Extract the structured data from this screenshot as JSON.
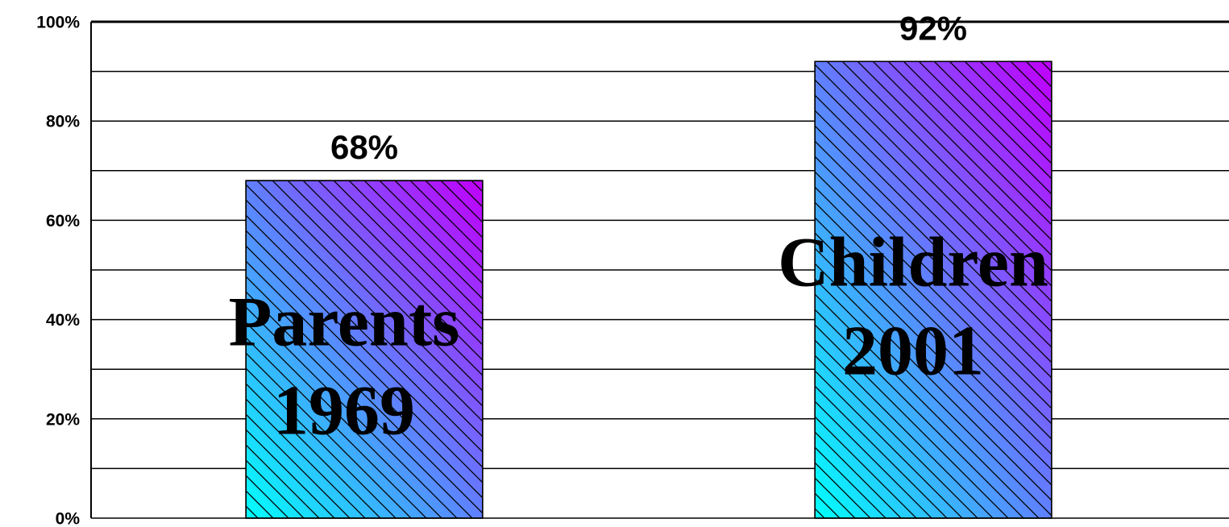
{
  "chart_data": {
    "type": "bar",
    "categories": [
      [
        "Parents",
        "1969"
      ],
      [
        "Children",
        "2001"
      ]
    ],
    "values": [
      68,
      92
    ],
    "value_labels": [
      "68%",
      "92%"
    ],
    "gradient": [
      "#00ffff",
      "#c000ff"
    ],
    "hatch": true,
    "ylim": [
      0,
      100
    ],
    "yticks": [
      {
        "value": 0,
        "label": "0%"
      },
      {
        "value": 20,
        "label": "20%"
      },
      {
        "value": 40,
        "label": "40%"
      },
      {
        "value": 60,
        "label": "60%"
      },
      {
        "value": 80,
        "label": "80%"
      },
      {
        "value": 100,
        "label": "100%"
      }
    ],
    "minor_yticks": [
      10,
      30,
      50,
      70,
      90
    ],
    "grid": true
  }
}
